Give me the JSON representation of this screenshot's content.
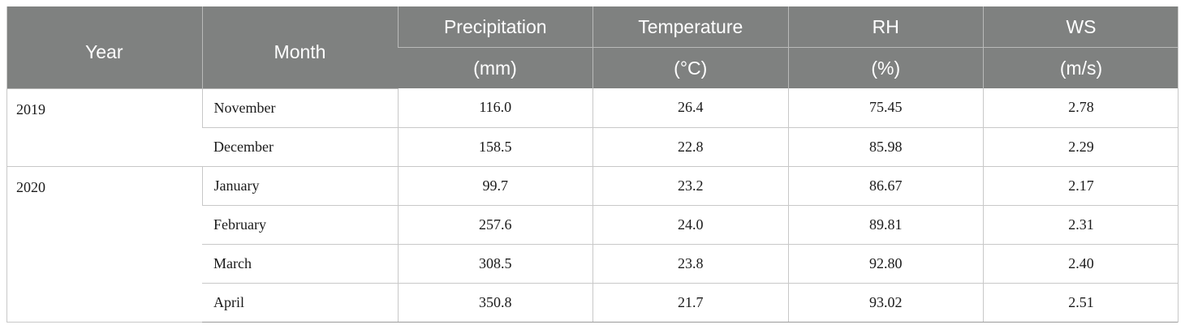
{
  "table": {
    "headers": {
      "year": "Year",
      "month": "Month",
      "precipitation": "Precipitation",
      "precipitation_unit": "(mm)",
      "temperature": "Temperature",
      "temperature_unit": "(°C)",
      "rh": "RH",
      "rh_unit": "(%)",
      "ws": "WS",
      "ws_unit": "(m/s)"
    },
    "groups": [
      {
        "year": "2019",
        "rows": [
          {
            "month": "November",
            "precipitation": "116.0",
            "temperature": "26.4",
            "rh": "75.45",
            "ws": "2.78"
          },
          {
            "month": "December",
            "precipitation": "158.5",
            "temperature": "22.8",
            "rh": "85.98",
            "ws": "2.29"
          }
        ]
      },
      {
        "year": "2020",
        "rows": [
          {
            "month": "January",
            "precipitation": "99.7",
            "temperature": "23.2",
            "rh": "86.67",
            "ws": "2.17"
          },
          {
            "month": "February",
            "precipitation": "257.6",
            "temperature": "24.0",
            "rh": "89.81",
            "ws": "2.31"
          },
          {
            "month": "March",
            "precipitation": "308.5",
            "temperature": "23.8",
            "rh": "92.80",
            "ws": "2.40"
          },
          {
            "month": "April",
            "precipitation": "350.8",
            "temperature": "21.7",
            "rh": "93.02",
            "ws": "2.51"
          }
        ]
      }
    ]
  },
  "colors": {
    "header_background": "#7f8180",
    "header_text": "#ffffff",
    "cell_text": "#1a1a1a",
    "grid_line": "#c8c8c8"
  }
}
